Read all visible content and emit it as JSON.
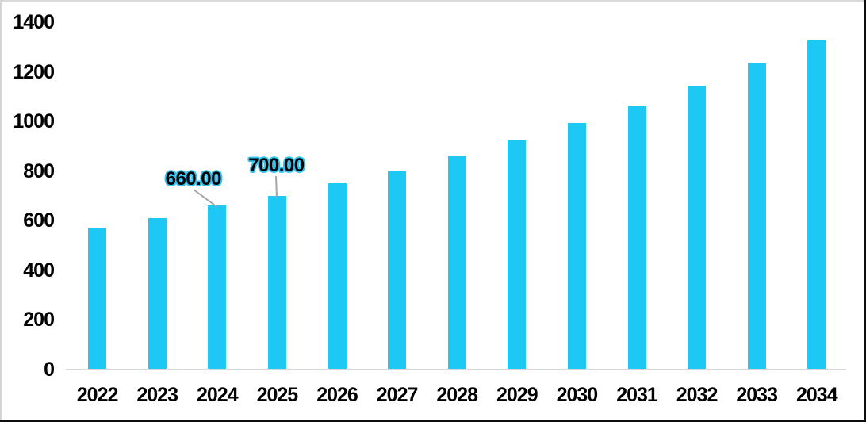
{
  "chart_data": {
    "type": "bar",
    "title": "",
    "xlabel": "",
    "ylabel": "",
    "categories": [
      "2022",
      "2023",
      "2024",
      "2025",
      "2026",
      "2027",
      "2028",
      "2029",
      "2030",
      "2031",
      "2032",
      "2033",
      "2034"
    ],
    "values": [
      570,
      610,
      660,
      700,
      750,
      800,
      860,
      925,
      995,
      1065,
      1145,
      1235,
      1325
    ],
    "ylim": [
      0,
      1400
    ],
    "ytick_interval": 200,
    "yticks": [
      1400,
      1200,
      1000,
      800,
      600,
      400,
      200,
      0
    ],
    "grid": false,
    "legend": false,
    "data_labels": [
      {
        "category": "2024",
        "text": "660.00"
      },
      {
        "category": "2025",
        "text": "700.00"
      }
    ],
    "colors": {
      "bar": "#1EC8F5",
      "axis_line": "#D9D9D9",
      "leader_line": "#A6A6A6",
      "tick_text": "#000000",
      "data_label_text": "#000000",
      "data_label_outline": "#35C3EF"
    }
  }
}
